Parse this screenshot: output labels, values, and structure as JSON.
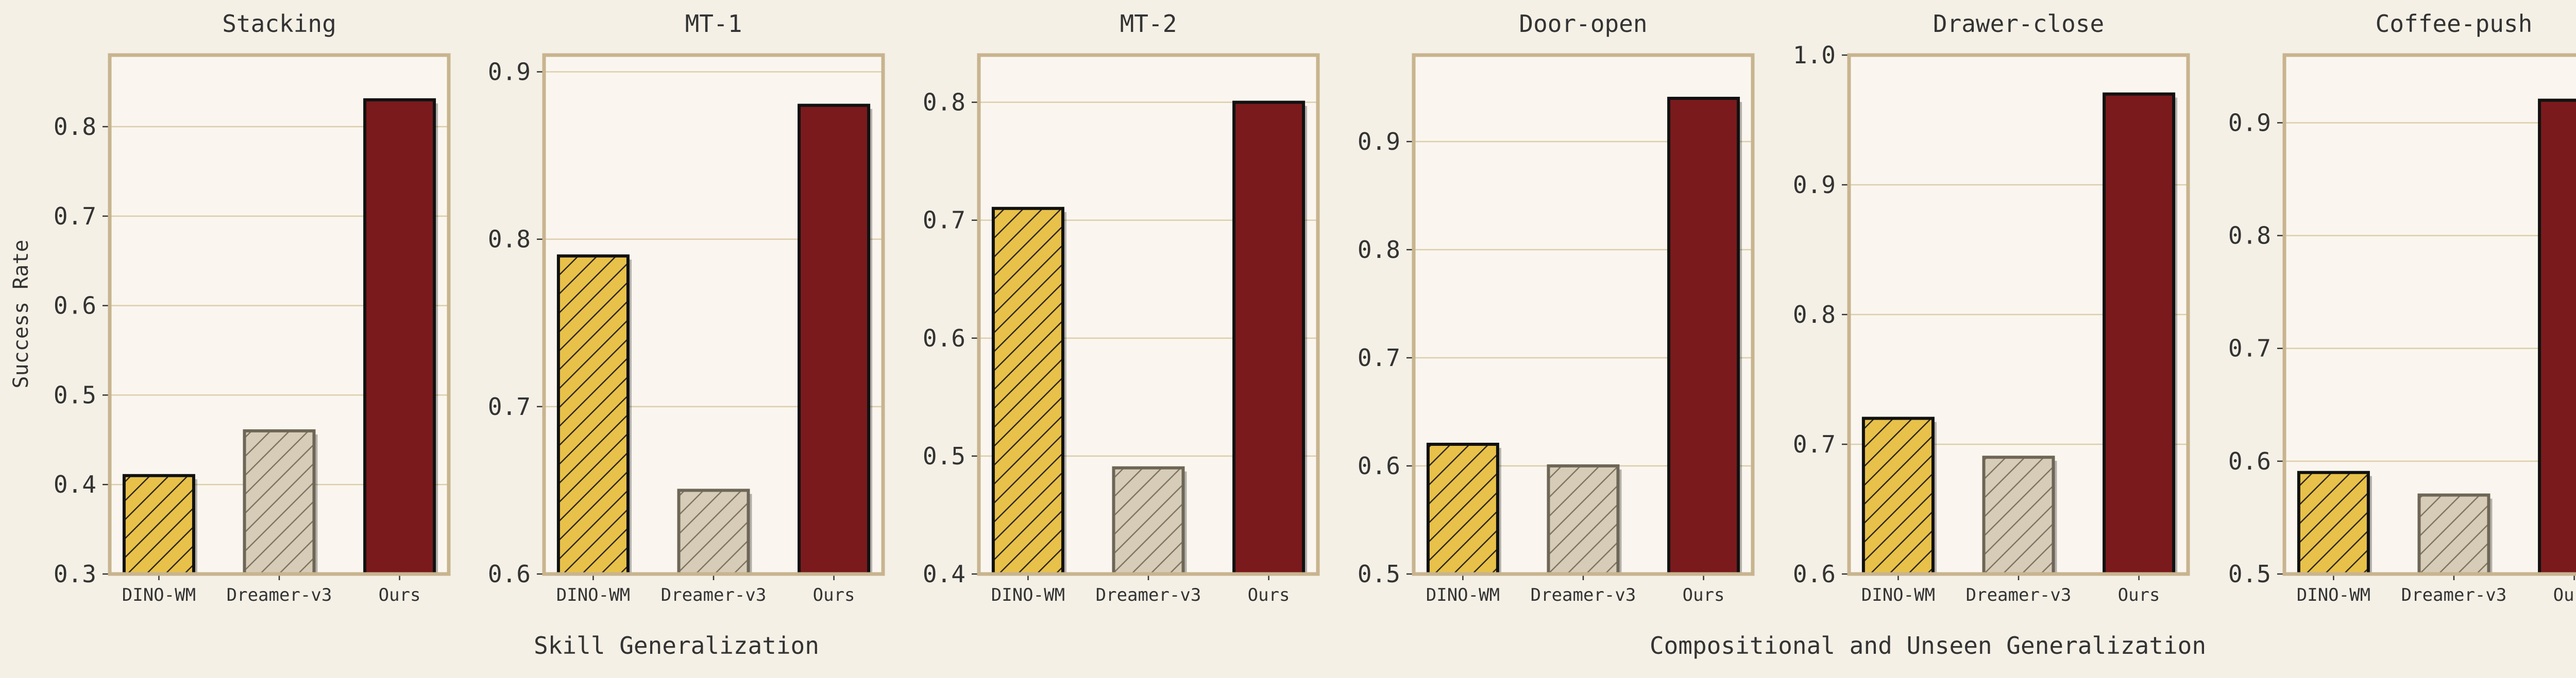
{
  "colors": {
    "page_background": "#f4f0e6",
    "plot_background": "#faf6ef",
    "plot_border": "#c8b48f",
    "grid": "#dccdaa",
    "dino_wm": "#e8c14a",
    "dreamer_v3": "#d6ccb8",
    "ours": "#7a1a1c",
    "text": "#333333"
  },
  "ylabel": "Success Rate",
  "group_labels": [
    "Skill Generalization",
    "Compositional and Unseen Generalization"
  ],
  "chart_data": [
    {
      "type": "bar",
      "title": "Stacking",
      "categories": [
        "DINO-WM",
        "Dreamer-v3",
        "Ours"
      ],
      "values": [
        0.41,
        0.46,
        0.83
      ],
      "ylim": [
        0.3,
        0.88
      ],
      "yticks": [
        "0.3",
        "0.4",
        "0.5",
        "0.6",
        "0.7",
        "0.8"
      ],
      "grid": true
    },
    {
      "type": "bar",
      "title": "MT-1",
      "categories": [
        "DINO-WM",
        "Dreamer-v3",
        "Ours"
      ],
      "values": [
        0.79,
        0.65,
        0.88
      ],
      "ylim": [
        0.6,
        0.91
      ],
      "yticks": [
        "0.6",
        "0.7",
        "0.8",
        "0.9"
      ],
      "grid": true
    },
    {
      "type": "bar",
      "title": "MT-2",
      "categories": [
        "DINO-WM",
        "Dreamer-v3",
        "Ours"
      ],
      "values": [
        0.71,
        0.49,
        0.8
      ],
      "ylim": [
        0.4,
        0.84
      ],
      "yticks": [
        "0.4",
        "0.5",
        "0.6",
        "0.7",
        "0.8"
      ],
      "grid": true
    },
    {
      "type": "bar",
      "title": "Door-open",
      "categories": [
        "DINO-WM",
        "Dreamer-v3",
        "Ours"
      ],
      "values": [
        0.62,
        0.6,
        0.94
      ],
      "ylim": [
        0.5,
        0.98
      ],
      "yticks": [
        "0.5",
        "0.6",
        "0.7",
        "0.8",
        "0.9"
      ],
      "grid": true
    },
    {
      "type": "bar",
      "title": "Drawer-close",
      "categories": [
        "DINO-WM",
        "Dreamer-v3",
        "Ours"
      ],
      "values": [
        0.72,
        0.69,
        0.97
      ],
      "ylim": [
        0.6,
        1.0
      ],
      "yticks": [
        "0.6",
        "0.7",
        "0.8",
        "0.9",
        "1.0"
      ],
      "grid": true
    },
    {
      "type": "bar",
      "title": "Coffee-push",
      "categories": [
        "DINO-WM",
        "Dreamer-v3",
        "Ours"
      ],
      "values": [
        0.59,
        0.57,
        0.92
      ],
      "ylim": [
        0.5,
        0.96
      ],
      "yticks": [
        "0.5",
        "0.6",
        "0.7",
        "0.8",
        "0.9"
      ],
      "grid": true
    }
  ]
}
